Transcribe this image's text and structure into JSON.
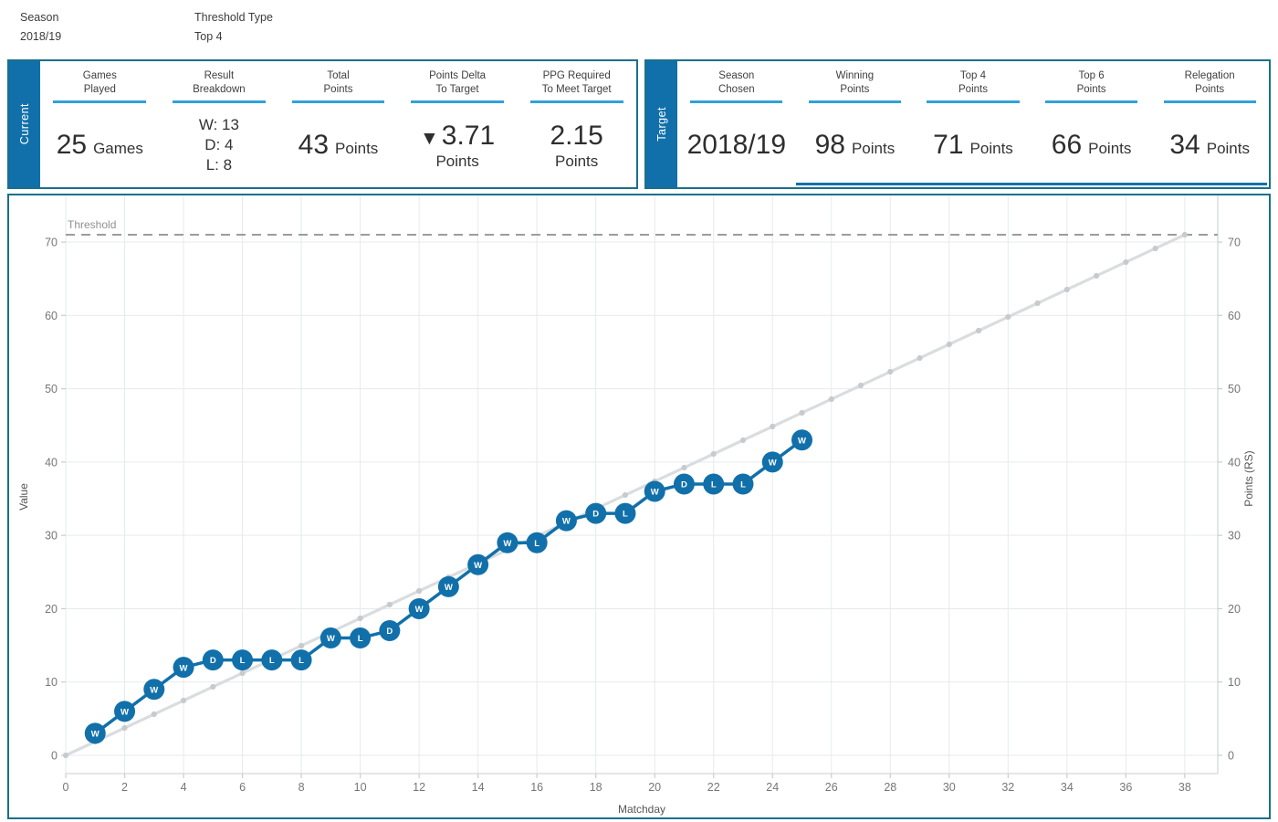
{
  "filters": {
    "season_label": "Season",
    "season_value": "2018/19",
    "threshold_type_label": "Threshold Type",
    "threshold_type_value": "Top 4"
  },
  "current_panel": {
    "tab_label": "Current",
    "columns": [
      {
        "header_line1": "Games",
        "header_line2": "Played",
        "big": "25",
        "suffix": "Games"
      },
      {
        "header_line1": "Result",
        "header_line2": "Breakdown",
        "lines": [
          "W: 13",
          "D: 4",
          "L: 8"
        ]
      },
      {
        "header_line1": "Total",
        "header_line2": "Points",
        "big": "43",
        "suffix": "Points"
      },
      {
        "header_line1": "Points Delta",
        "header_line2": "To Target",
        "arrow": "▼",
        "big": "3.71",
        "suffix_below": "Points"
      },
      {
        "header_line1": "PPG Required",
        "header_line2": "To Meet Target",
        "big": "2.15",
        "suffix_below": "Points"
      }
    ]
  },
  "target_panel": {
    "tab_label": "Target",
    "columns": [
      {
        "header_line1": "Season",
        "header_line2": "Chosen",
        "big": "2018/19"
      },
      {
        "header_line1": "Winning",
        "header_line2": "Points",
        "big": "98",
        "suffix": "Points"
      },
      {
        "header_line1": "Top 4",
        "header_line2": "Points",
        "big": "71",
        "suffix": "Points"
      },
      {
        "header_line1": "Top 6",
        "header_line2": "Points",
        "big": "66",
        "suffix": "Points"
      },
      {
        "header_line1": "Relegation",
        "header_line2": "Points",
        "big": "34",
        "suffix": "Points"
      }
    ]
  },
  "chart_data": {
    "type": "line",
    "xlabel": "Matchday",
    "ylabel_left": "Value",
    "ylabel_right": "Points (RS)",
    "x_ticks": [
      0,
      2,
      4,
      6,
      8,
      10,
      12,
      14,
      16,
      18,
      20,
      22,
      24,
      26,
      28,
      30,
      32,
      34,
      36,
      38
    ],
    "y_ticks": [
      0,
      10,
      20,
      30,
      40,
      50,
      60,
      70
    ],
    "xlim": [
      0,
      39.1
    ],
    "ylim": [
      -2.5,
      76.5
    ],
    "grid": true,
    "threshold": {
      "value": 71,
      "label": "Threshold"
    },
    "pace_line": {
      "name": "required-pace-line",
      "x_start": 0,
      "y_start": 0,
      "x_end": 38,
      "y_end": 71
    },
    "series": {
      "name": "cumulative-points",
      "matchdays": [
        1,
        2,
        3,
        4,
        5,
        6,
        7,
        8,
        9,
        10,
        11,
        12,
        13,
        14,
        15,
        16,
        17,
        18,
        19,
        20,
        21,
        22,
        23,
        24,
        25
      ],
      "results": [
        "W",
        "W",
        "W",
        "W",
        "D",
        "L",
        "L",
        "L",
        "W",
        "L",
        "D",
        "W",
        "W",
        "W",
        "W",
        "L",
        "W",
        "D",
        "L",
        "W",
        "D",
        "L",
        "L",
        "W",
        "W"
      ],
      "cumulative_points": [
        3,
        6,
        9,
        12,
        13,
        13,
        13,
        13,
        16,
        16,
        17,
        20,
        23,
        26,
        29,
        29,
        32,
        33,
        33,
        36,
        37,
        37,
        37,
        40,
        43
      ]
    },
    "colors": {
      "series_blue": "#1170aa",
      "pace_gray": "#dadddf",
      "pace_marker_gray": "#c7cbce",
      "threshold_gray": "#9c9c9c",
      "grid_gray": "#e7eaec",
      "axis_gray": "#d4d7d9",
      "tick_label_gray": "#767676",
      "axis_title_gray": "#555555"
    }
  },
  "ui_colors": {
    "accent_blue": "#1170aa",
    "light_blue": "#31a1d9",
    "teal_border": "#19708c"
  }
}
